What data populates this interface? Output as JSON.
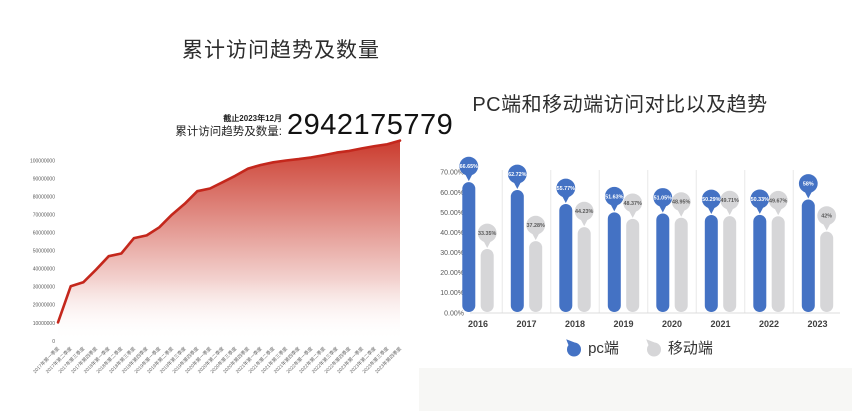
{
  "page": {
    "background": "#ffffff"
  },
  "chart_data": [
    {
      "type": "area",
      "title": "累计访问趋势及数量",
      "note_date": "截止2023年12月",
      "note_label": "累计访问趋势及数量:",
      "note_value": "2942175779",
      "x": [
        "2017年第一季度",
        "2017年第二季度",
        "2017年第三季度",
        "2017年第四季度",
        "2018年第一季度",
        "2018年第二季度",
        "2018年第三季度",
        "2018年第四季度",
        "2019年第一季度",
        "2019年第二季度",
        "2019年第三季度",
        "2019年第四季度",
        "2020年第一季度",
        "2020年第二季度",
        "2020年第三季度",
        "2020年第四季度",
        "2021年第一季度",
        "2021年第二季度",
        "2021年第三季度",
        "2021年第四季度",
        "2022年第一季度",
        "2022年第二季度",
        "2022年第三季度",
        "2022年第四季度",
        "2023年第一季度",
        "2023年第二季度",
        "2023年第三季度",
        "2023年第四季度"
      ],
      "values": [
        10300000,
        30300000,
        32500000,
        39500000,
        47000000,
        48500000,
        57000000,
        58500000,
        63000000,
        70000000,
        76000000,
        83000000,
        84500000,
        88000000,
        91500000,
        95500000,
        97500000,
        99000000,
        100000000,
        100800000,
        101700000,
        103000000,
        104400000,
        105300000,
        106700000,
        108000000,
        109000000,
        111000000
      ],
      "y_ticks": [
        100000000,
        90000000,
        80000000,
        70000000,
        60000000,
        50000000,
        40000000,
        30000000,
        20000000,
        10000000,
        0
      ],
      "ylim": [
        0,
        100000000
      ],
      "grid": false,
      "line_color": "#c4271c",
      "fill_top": "#c93527",
      "fill_bottom": "#ffffff",
      "tick_color": "#595959",
      "xlabel_color": "#666666"
    },
    {
      "type": "bar",
      "title": "PC端和移动端访问对比以及趋势",
      "categories": [
        "2016",
        "2017",
        "2018",
        "2019",
        "2020",
        "2021",
        "2022",
        "2023"
      ],
      "series": [
        {
          "name": "pc端",
          "color": "#4472c4",
          "label_color": "#ffffff",
          "values": [
            66.65,
            62.72,
            55.77,
            51.63,
            51.05,
            50.29,
            50.33,
            58
          ],
          "labels": [
            "66.65%",
            "62.72%",
            "55.77%",
            "51.63%",
            "51.05%",
            "50.29%",
            "50.33%",
            "58%"
          ]
        },
        {
          "name": "移动端",
          "color": "#d6d6d8",
          "label_color": "#595959",
          "values": [
            33.35,
            37.28,
            44.23,
            48.37,
            48.95,
            49.71,
            49.67,
            42
          ],
          "labels": [
            "33.35%",
            "37.28%",
            "44.23%",
            "48.37%",
            "48.95%",
            "49.71%",
            "49.67%",
            "42%"
          ]
        }
      ],
      "y_ticks": [
        "70.00%",
        "60.00%",
        "50.00%",
        "40.00%",
        "30.00%",
        "20.00%",
        "10.00%",
        "0.00%"
      ],
      "ylim": [
        0,
        70
      ],
      "legend_position": "bottom",
      "grid": false,
      "tick_color": "#595959",
      "category_color": "#404040",
      "divider_color": "#e8e8e8",
      "axis_color": "#dcdcdc"
    }
  ]
}
